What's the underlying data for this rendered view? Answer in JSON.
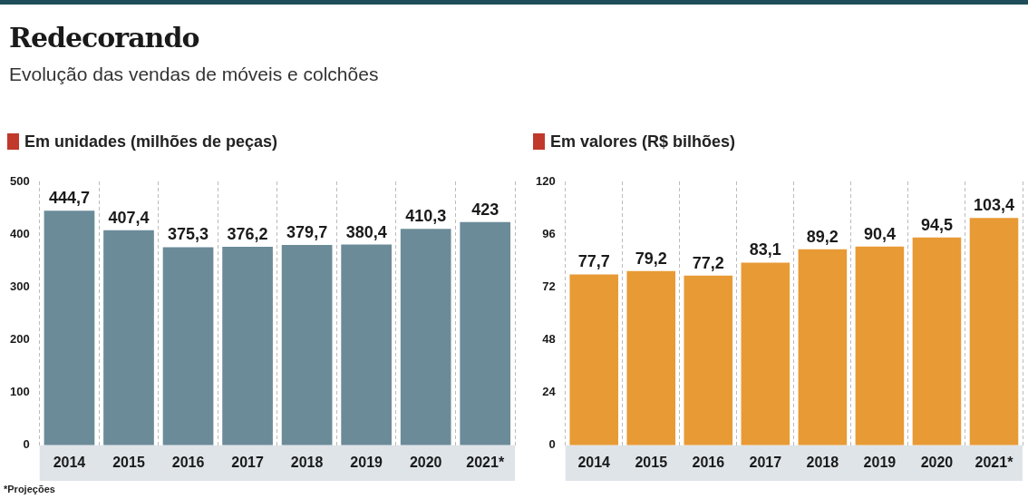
{
  "chart_data": [
    {
      "type": "other",
      "title": "Redecorando",
      "subtitle": "Evolução das vendas de móveis e colchões",
      "annotations": [
        "*Projeções"
      ]
    },
    {
      "type": "bar",
      "title": "Em unidades (milhões de peças)",
      "categories": [
        "2014",
        "2015",
        "2016",
        "2017",
        "2018",
        "2019",
        "2020",
        "2021*"
      ],
      "values": [
        444.7,
        407.4,
        375.3,
        376.2,
        379.7,
        380.4,
        410.3,
        423
      ],
      "value_labels": [
        "444,7",
        "407,4",
        "375,3",
        "376,2",
        "379,7",
        "380,4",
        "410,3",
        "423"
      ],
      "color": "#6b8b99",
      "ylim": [
        0,
        500
      ],
      "yticks": [
        0,
        100,
        200,
        300,
        400,
        500
      ],
      "grid": "x",
      "legend": false
    },
    {
      "type": "bar",
      "title": "Em valores (R$ bilhões)",
      "categories": [
        "2014",
        "2015",
        "2016",
        "2017",
        "2018",
        "2019",
        "2020",
        "2021*"
      ],
      "values": [
        77.7,
        79.2,
        77.2,
        83.1,
        89.2,
        90.4,
        94.5,
        103.4
      ],
      "value_labels": [
        "77,7",
        "79,2",
        "77,2",
        "83,1",
        "89,2",
        "90,4",
        "94,5",
        "103,4"
      ],
      "color": "#e89a35",
      "ylim": [
        0,
        120
      ],
      "yticks": [
        0,
        24,
        48,
        72,
        96,
        120
      ],
      "grid": "x",
      "legend": false
    }
  ]
}
